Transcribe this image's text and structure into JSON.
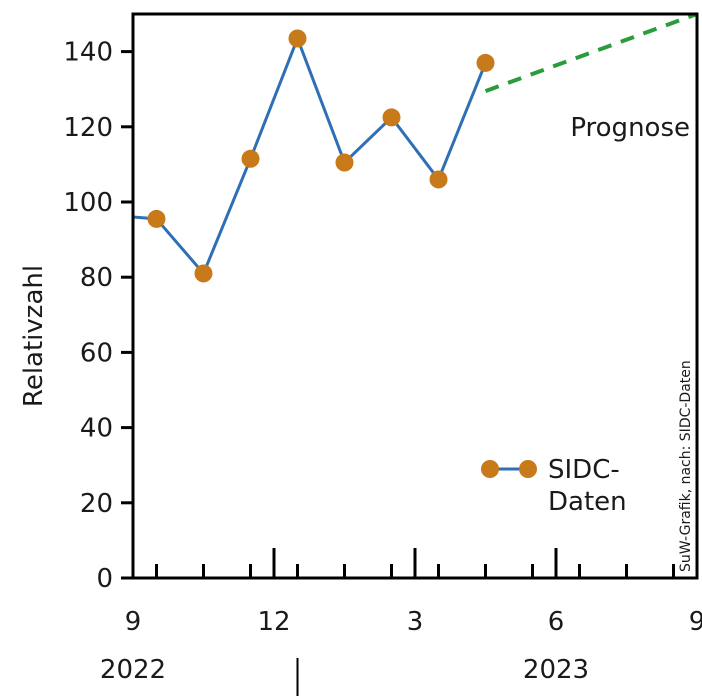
{
  "chart_data": {
    "type": "line",
    "ylabel": "Relativzahl",
    "ylim": [
      0,
      150
    ],
    "yticks": [
      "0",
      "20",
      "40",
      "60",
      "80",
      "100",
      "120",
      "140"
    ],
    "xlim": [
      9,
      21
    ],
    "xticks": [
      {
        "value": 9,
        "label": "9"
      },
      {
        "value": 12,
        "label": "12"
      },
      {
        "value": 15,
        "label": "3"
      },
      {
        "value": 18,
        "label": "6"
      },
      {
        "value": 21,
        "label": "9"
      }
    ],
    "minor_ticks": [
      9.5,
      10.5,
      11.5,
      12.5,
      13.5,
      14.5,
      15.5,
      16.5,
      17.5,
      18.5,
      19.5,
      20.5
    ],
    "year_labels": [
      {
        "value": 9,
        "label": "2022"
      },
      {
        "value": 18,
        "label": "2023"
      }
    ],
    "year_divider": 12.5,
    "series": [
      {
        "name": "SIDC-Daten",
        "color": "#2e6fb5",
        "marker_color": "#c8791a",
        "start": {
          "x": 9,
          "y": 96
        },
        "x": [
          9.5,
          10.5,
          11.5,
          12.5,
          13.5,
          14.5,
          15.5,
          16.5
        ],
        "y": [
          95.5,
          81,
          111.5,
          143.5,
          110.5,
          122.5,
          106,
          137
        ]
      },
      {
        "name": "Prognose",
        "color": "#2a9d3a",
        "style": "dashed",
        "x": [
          16.5,
          21
        ],
        "y": [
          129.5,
          150
        ]
      }
    ],
    "legend": {
      "label": "SIDC-\nDaten",
      "placement": "bottom-right"
    },
    "annotation": "Prognose",
    "credit": "SuW-Grafik, nach: SIDC-Daten"
  }
}
